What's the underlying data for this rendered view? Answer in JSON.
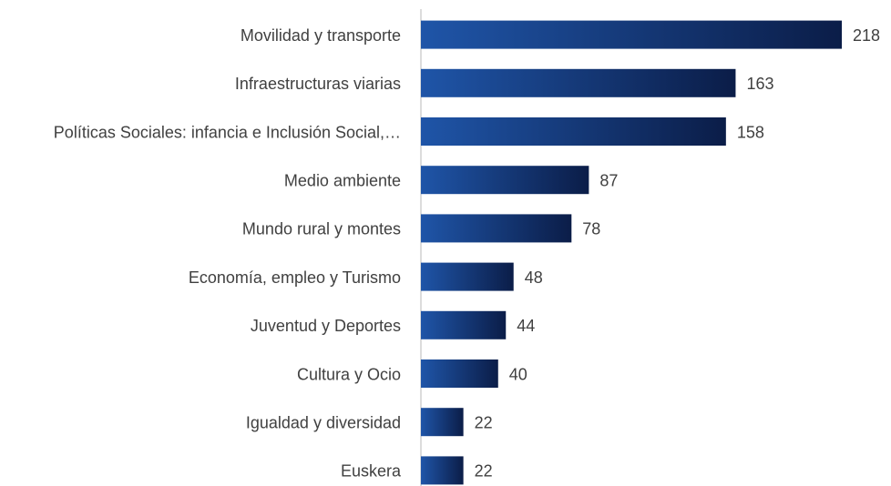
{
  "chart_data": {
    "type": "bar",
    "orientation": "horizontal",
    "categories": [
      "Movilidad y transporte",
      "Infraestructuras viarias",
      "Políticas Sociales: infancia e Inclusión Social,…",
      "Medio ambiente",
      "Mundo rural y montes",
      "Economía, empleo y Turismo",
      "Juventud y Deportes",
      "Cultura y Ocio",
      "Igualdad y diversidad",
      "Euskera"
    ],
    "values": [
      218,
      163,
      158,
      87,
      78,
      48,
      44,
      40,
      22,
      22
    ],
    "color": [
      "#1f55a8",
      "#0b1d48"
    ]
  }
}
